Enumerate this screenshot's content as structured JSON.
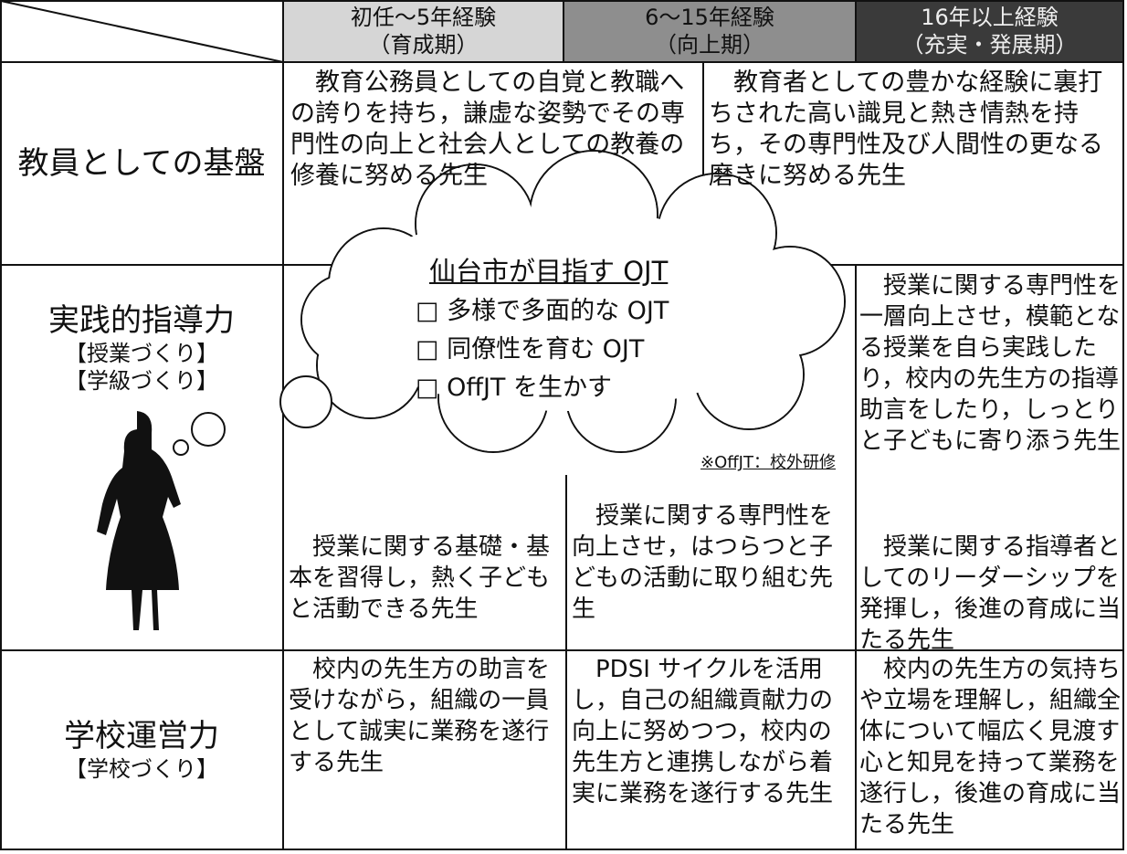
{
  "header": {
    "columns": [
      {
        "years": "初任～5年経験",
        "stage": "（育成期）"
      },
      {
        "years": "6～15年経験",
        "stage": "（向上期）"
      },
      {
        "years": "16年以上経験",
        "stage": "（充実・発展期）"
      }
    ]
  },
  "rows": [
    {
      "label": "教員としての基盤",
      "cells": [
        "教育公務員としての自覚と教職への誇りを持ち，謙虚な姿勢でその専門性の向上と社会人としての教養の修養に努める先生",
        "教育者としての豊かな経験に裏打ちされた高い識見と熱き情熱を持ち，その専門性及び人間性の更なる磨きに努める先生"
      ]
    },
    {
      "label": "実践的指導力",
      "sublabels": [
        "【授業づくり】",
        "【学級づくり】"
      ],
      "cells": [
        "授業に関する基礎・基本を習得し，熱く子どもと活動できる先生",
        "授業に関する専門性を向上させ，はつらつと子どもの活動に取り組む先生",
        "授業に関する専門性を一層向上させ，模範となる授業を自ら実践したり，校内の先生方の指導助言をしたり，しっとりと子どもに寄り添う先生",
        "授業に関する指導者としてのリーダーシップを発揮し，後進の育成に当たる先生"
      ]
    },
    {
      "label": "学校運営力",
      "sublabels": [
        "【学校づくり】"
      ],
      "cells": [
        "校内の先生方の助言を受けながら，組織の一員として誠実に業務を遂行する先生",
        "PDSI サイクルを活用し，自己の組織貢献力の向上に努めつつ，校内の先生方と連携しながら着実に業務を遂行する先生",
        "校内の先生方の気持ちや立場を理解し，組織全体について幅広く見渡す心と知見を持って業務を遂行し，後進の育成に当たる先生"
      ]
    }
  ],
  "cloud": {
    "title": "仙台市が目指す OJT",
    "items": [
      "□ 多様で多面的な OJT",
      "□ 同僚性を育む OJT",
      "□ OffJT を生かす"
    ],
    "note": "※OffJT：校外研修"
  }
}
